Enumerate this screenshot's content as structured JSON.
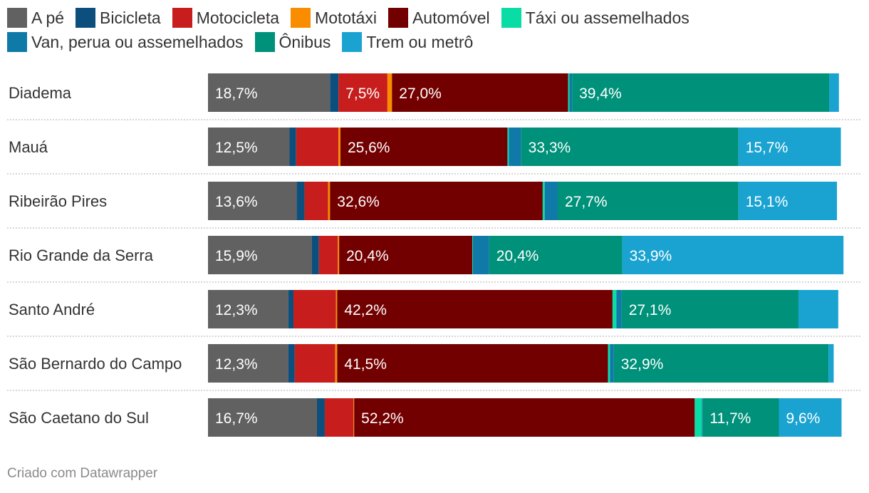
{
  "chart_data": {
    "type": "bar",
    "orientation": "horizontal",
    "stacked": true,
    "title": "",
    "xlabel": "",
    "ylabel": "",
    "xlim": [
      0,
      100
    ],
    "legend_position": "top",
    "value_suffix": "%",
    "categories": [
      "Diadema",
      "Mauá",
      "Ribeirão Pires",
      "Rio Grande da Serra",
      "Santo André",
      "São Bernardo do Campo",
      "São Caetano do Sul"
    ],
    "series": [
      {
        "name": "A pé",
        "color": "#616161",
        "values": [
          18.7,
          12.5,
          13.6,
          15.9,
          12.3,
          12.3,
          16.7
        ],
        "labels": [
          "18,7%",
          "12,5%",
          "13,6%",
          "15,9%",
          "12,3%",
          "12,3%",
          "16,7%"
        ]
      },
      {
        "name": "Bicicleta",
        "color": "#0d4f7c",
        "values": [
          1.3,
          1.0,
          1.2,
          1.1,
          0.8,
          1.0,
          1.2
        ],
        "labels": [
          "",
          "",
          "",
          "",
          "",
          "",
          ""
        ]
      },
      {
        "name": "Motocicleta",
        "color": "#c71e1d",
        "values": [
          7.5,
          6.5,
          3.6,
          2.9,
          6.5,
          6.2,
          4.4
        ],
        "labels": [
          "7,5%",
          "",
          "",
          "",
          "",
          "",
          ""
        ]
      },
      {
        "name": "Mototáxi",
        "color": "#fa8c00",
        "values": [
          0.7,
          0.3,
          0.3,
          0.2,
          0.2,
          0.3,
          0.1
        ],
        "labels": [
          "",
          "",
          "",
          "",
          "",
          "",
          ""
        ]
      },
      {
        "name": "Automóvel",
        "color": "#730000",
        "values": [
          27.0,
          25.6,
          32.6,
          20.4,
          42.2,
          41.5,
          52.2
        ],
        "labels": [
          "27,0%",
          "25,6%",
          "32,6%",
          "20,4%",
          "42,2%",
          "41,5%",
          "52,2%"
        ]
      },
      {
        "name": "Táxi ou assemelhados",
        "color": "#09dca4",
        "values": [
          0.2,
          0.2,
          0.3,
          0.1,
          0.6,
          0.3,
          1.1
        ],
        "labels": [
          "",
          "",
          "",
          "",
          "",
          "",
          ""
        ]
      },
      {
        "name": "Van, perua ou assemelhados",
        "color": "#0f79a7",
        "values": [
          0.4,
          1.9,
          2.0,
          2.5,
          0.8,
          0.6,
          0.1
        ],
        "labels": [
          "",
          "",
          "",
          "",
          "",
          "",
          ""
        ]
      },
      {
        "name": "Ônibus",
        "color": "#00917a",
        "values": [
          39.4,
          33.3,
          27.7,
          20.4,
          27.1,
          32.9,
          11.7
        ],
        "labels": [
          "39,4%",
          "33,3%",
          "27,7%",
          "20,4%",
          "27,1%",
          "32,9%",
          "11,7%"
        ]
      },
      {
        "name": "Trem ou metrô",
        "color": "#1aa3d1",
        "values": [
          1.5,
          15.7,
          15.1,
          33.9,
          6.1,
          0.8,
          9.6
        ],
        "labels": [
          "",
          "15,7%",
          "15,1%",
          "33,9%",
          "",
          "",
          "9,6%"
        ]
      }
    ]
  },
  "footer": {
    "text": "Criado com Datawrapper"
  }
}
